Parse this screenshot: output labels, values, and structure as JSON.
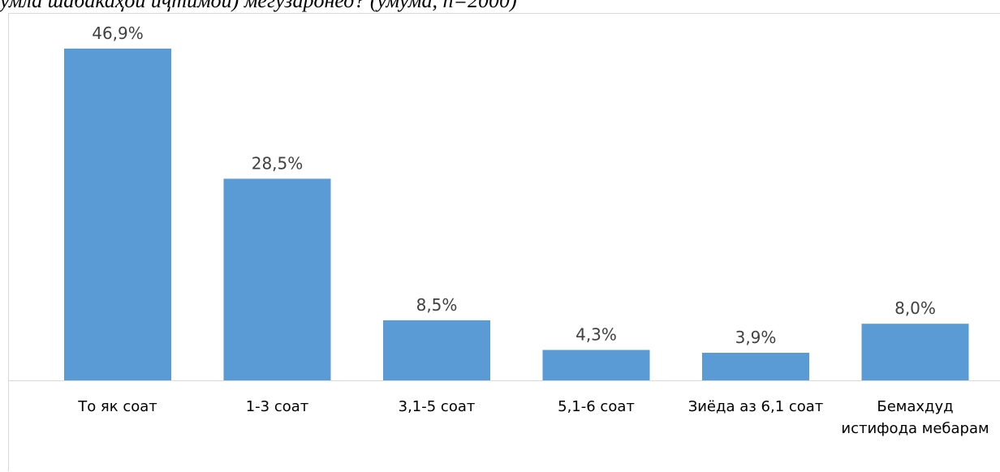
{
  "caption": "умла шабакаҳои иҷтимоӣ) мегузаронед? (умума, n=2000)",
  "chart_data": {
    "type": "bar",
    "categories": [
      [
        "То як соат"
      ],
      [
        "1-3 соат"
      ],
      [
        "3,1-5 соат"
      ],
      [
        "5,1-6 соат"
      ],
      [
        "Зиёда аз 6,1 соат"
      ],
      [
        "Бемахдуд",
        "истифода мебарам"
      ]
    ],
    "values": [
      46.9,
      28.5,
      8.5,
      4.3,
      3.9,
      8.0
    ],
    "value_labels": [
      "46,9%",
      "28,5%",
      "8,5%",
      "4,3%",
      "3,9%",
      "8,0%"
    ],
    "ylim": [
      0,
      47
    ],
    "grid": false,
    "legend": "none",
    "bar_color": "#5b9bd5",
    "axis_color": "#d9d9d9"
  }
}
